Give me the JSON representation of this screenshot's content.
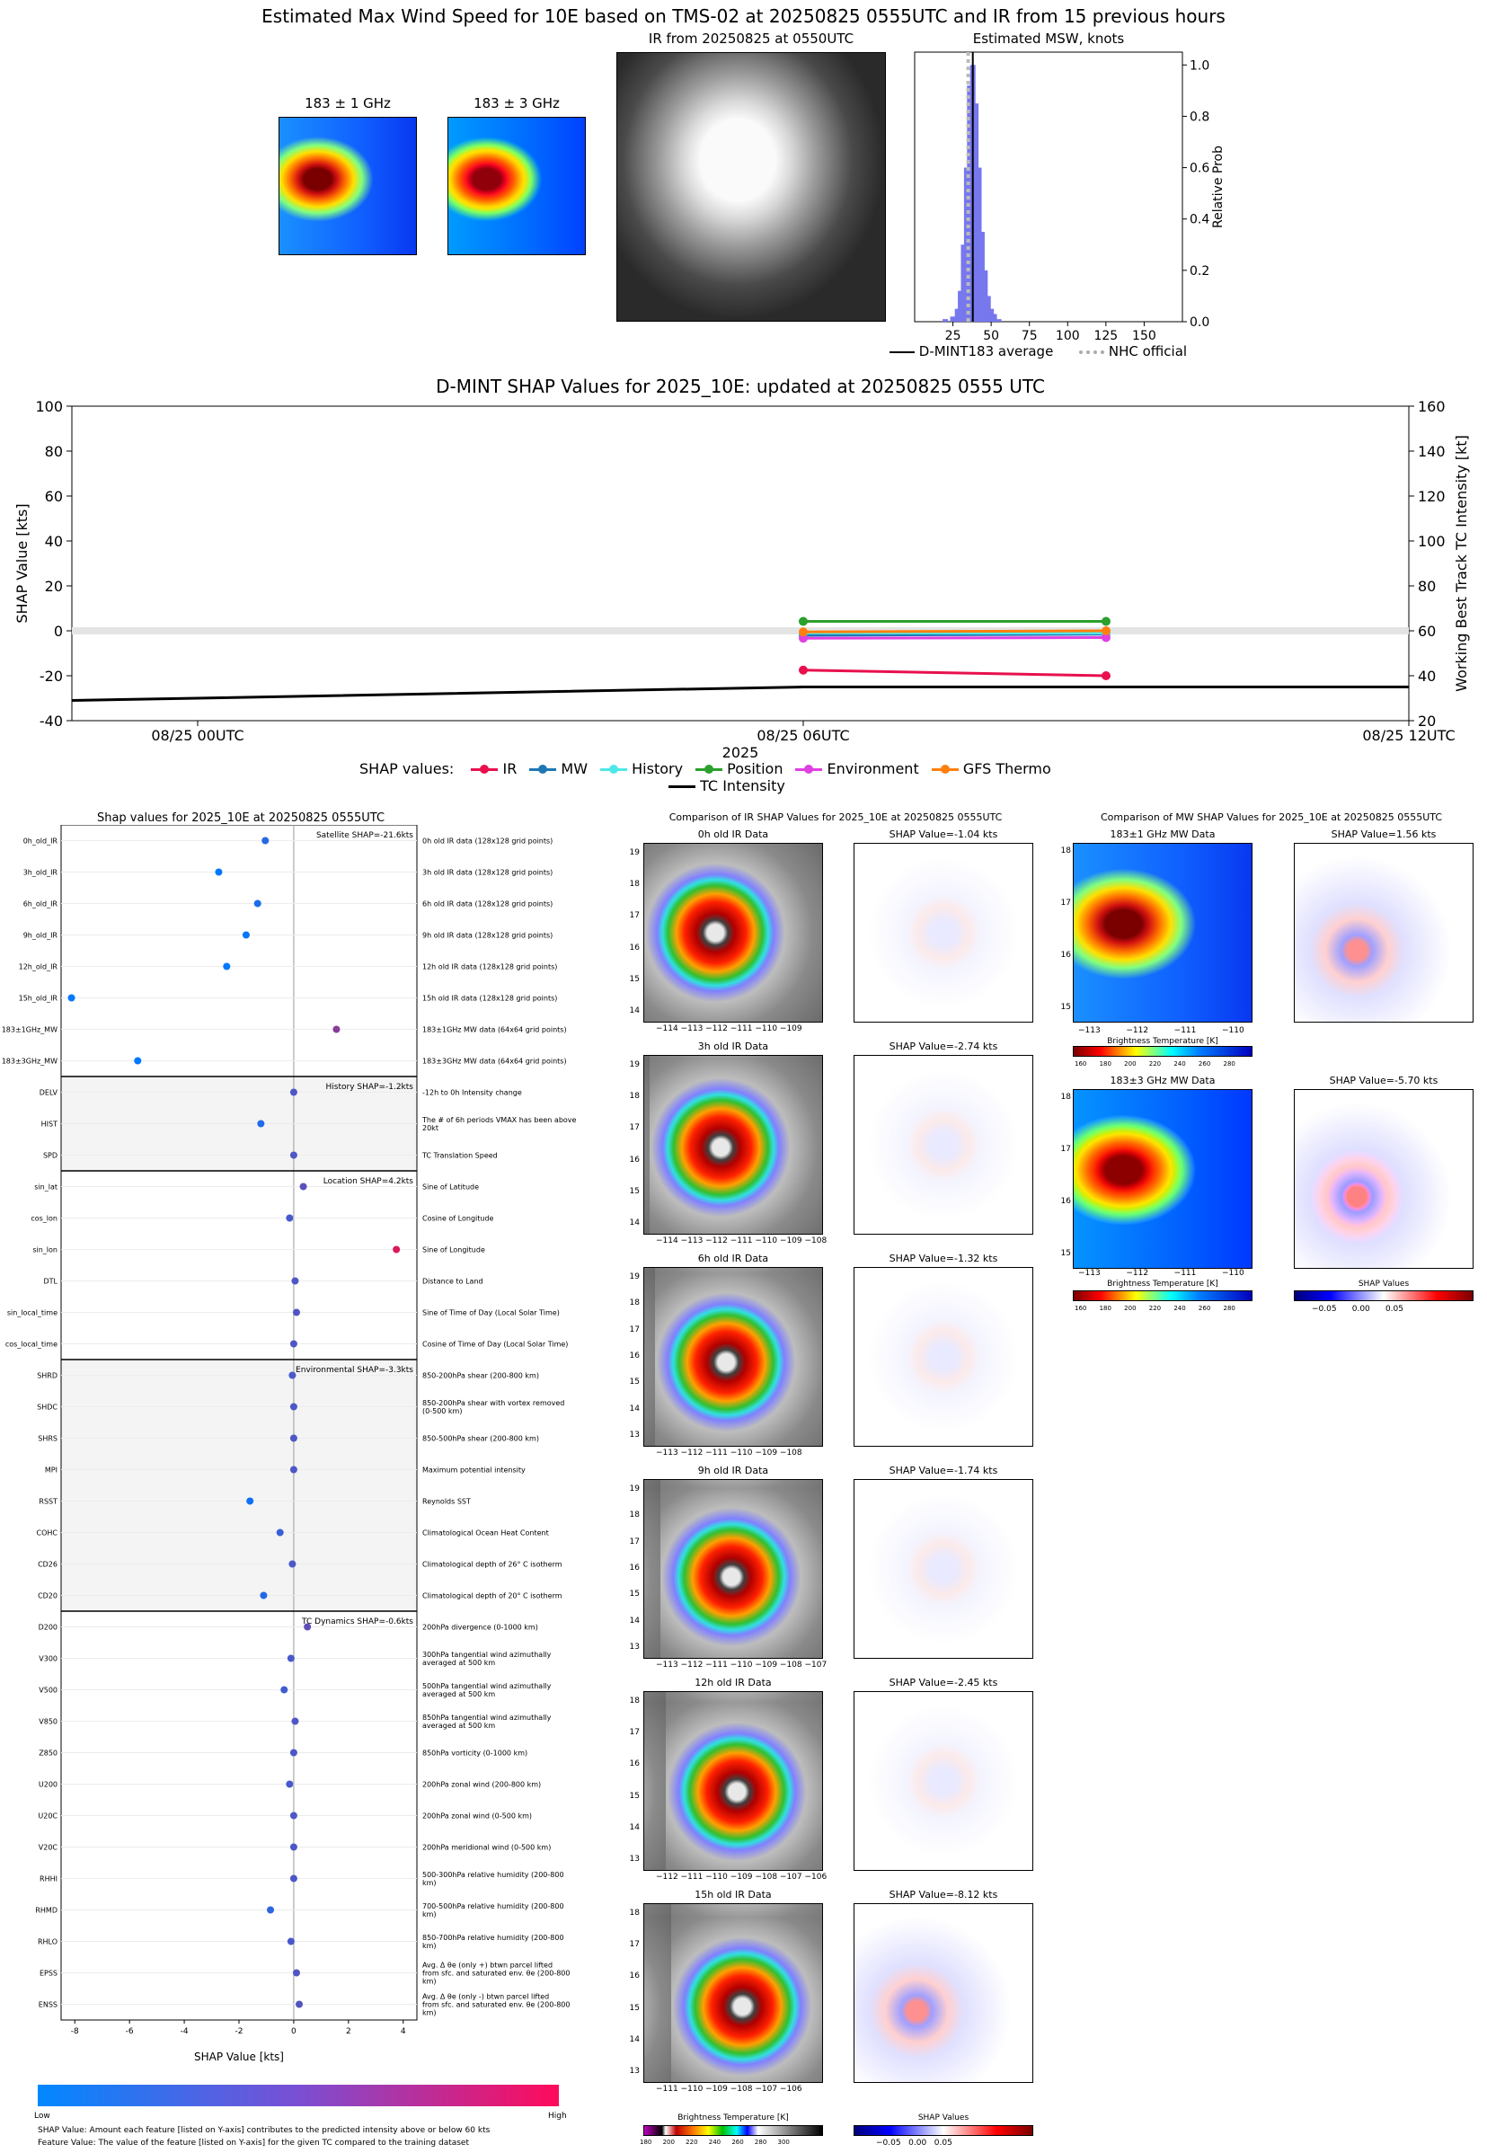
{
  "header": {
    "main_title": "Estimated Max Wind Speed for 10E based on TMS-02 at 20250825 0555UTC and IR from 15 previous hours",
    "mw1_title": "183 ± 1 GHz",
    "mw2_title": "183 ± 3 GHz",
    "ir_title": "IR from 20250825 at 0550UTC",
    "hist_title": "Estimated MSW, knots",
    "hist_ylabel": "Relative Prob",
    "hist_xticks": [
      "25",
      "50",
      "75",
      "100",
      "125",
      "150"
    ],
    "hist_yticks": [
      "0.0",
      "0.2",
      "0.4",
      "0.6",
      "0.8",
      "1.0"
    ],
    "legend_avg": "D-MINT183 average",
    "legend_nhc": "NHC official"
  },
  "shap_ts": {
    "title": "D-MINT SHAP Values for 2025_10E: updated at 20250825 0555 UTC",
    "ylabel_left": "SHAP Value [kts]",
    "ylabel_right": "Working Best Track TC Intensity [kt]",
    "xlabel": "2025",
    "left_ticks": [
      "100",
      "80",
      "60",
      "40",
      "20",
      "0",
      "-20",
      "-40"
    ],
    "right_ticks": [
      "160",
      "140",
      "120",
      "100",
      "80",
      "60",
      "40",
      "20"
    ],
    "x_ticks": [
      "08/25 00UTC",
      "08/25 06UTC",
      "08/25 12UTC"
    ],
    "legend_title": "SHAP values:",
    "legend": [
      "IR",
      "MW",
      "History",
      "Position",
      "Environment",
      "GFS Thermo",
      "TC Intensity"
    ]
  },
  "beeswarm": {
    "title": "Shap values for 2025_10E at 20250825 0555UTC",
    "xlabel": "SHAP Value [kts]",
    "xticks": [
      "-8",
      "-6",
      "-4",
      "-2",
      "0",
      "2",
      "4"
    ],
    "groups": [
      "Satellite SHAP=-21.6kts",
      "History SHAP=-1.2kts",
      "Location SHAP=4.2kts",
      "Environmental SHAP=-3.3kts",
      "TC Dynamics SHAP=-0.6kts"
    ],
    "features": [
      {
        "name": "0h_old_IR",
        "desc": "0h old IR data (128x128 grid points)",
        "value": -1.04
      },
      {
        "name": "3h_old_IR",
        "desc": "3h old IR data (128x128 grid points)",
        "value": -2.74
      },
      {
        "name": "6h_old_IR",
        "desc": "6h old IR data (128x128 grid points)",
        "value": -1.32
      },
      {
        "name": "9h_old_IR",
        "desc": "9h old IR data (128x128 grid points)",
        "value": -1.74
      },
      {
        "name": "12h_old_IR",
        "desc": "12h old IR data (128x128 grid points)",
        "value": -2.45
      },
      {
        "name": "15h_old_IR",
        "desc": "15h old IR data (128x128 grid points)",
        "value": -8.12
      },
      {
        "name": "183±1GHz_MW",
        "desc": "183±1GHz MW data (64x64 grid points)",
        "value": 1.56
      },
      {
        "name": "183±3GHz_MW",
        "desc": "183±3GHz MW data (64x64 grid points)",
        "value": -5.7
      },
      {
        "name": "DELV",
        "desc": "-12h to 0h Intensity change",
        "value": 0.0
      },
      {
        "name": "HIST",
        "desc": "The # of 6h periods VMAX has been above 20kt",
        "value": -1.2
      },
      {
        "name": "SPD",
        "desc": "TC Translation Speed",
        "value": 0.0
      },
      {
        "name": "sin_lat",
        "desc": "Sine of Latitude",
        "value": 0.35
      },
      {
        "name": "cos_lon",
        "desc": "Cosine of Longitude",
        "value": -0.15
      },
      {
        "name": "sin_lon",
        "desc": "Sine of Longitude",
        "value": 3.75
      },
      {
        "name": "DTL",
        "desc": "Distance to Land",
        "value": 0.05
      },
      {
        "name": "sin_local_time",
        "desc": "Sine of Time of Day (Local Solar Time)",
        "value": 0.1
      },
      {
        "name": "cos_local_time",
        "desc": "Cosine of Time of Day (Local Solar Time)",
        "value": 0.0
      },
      {
        "name": "SHRD",
        "desc": "850-200hPa shear (200-800 km)",
        "value": -0.05
      },
      {
        "name": "SHDC",
        "desc": "850-200hPa shear with vortex removed (0-500 km)",
        "value": 0.0
      },
      {
        "name": "SHRS",
        "desc": "850-500hPa shear (200-800 km)",
        "value": 0.0
      },
      {
        "name": "MPI",
        "desc": "Maximum potential intensity",
        "value": 0.0
      },
      {
        "name": "RSST",
        "desc": "Reynolds SST",
        "value": -1.6
      },
      {
        "name": "COHC",
        "desc": "Climatological Ocean Heat Content",
        "value": -0.5
      },
      {
        "name": "CD26",
        "desc": "Climatological depth of 26° C isotherm",
        "value": -0.05
      },
      {
        "name": "CD20",
        "desc": "Climatological depth of 20° C isotherm",
        "value": -1.1
      },
      {
        "name": "D200",
        "desc": "200hPa divergence (0-1000 km)",
        "value": 0.5
      },
      {
        "name": "V300",
        "desc": "300hPa tangential wind azimuthally averaged at 500 km",
        "value": -0.1
      },
      {
        "name": "V500",
        "desc": "500hPa tangential wind azimuthally averaged at 500 km",
        "value": -0.35
      },
      {
        "name": "V850",
        "desc": "850hPa tangential wind azimuthally averaged at 500 km",
        "value": 0.05
      },
      {
        "name": "Z850",
        "desc": "850hPa vorticity (0-1000 km)",
        "value": 0.0
      },
      {
        "name": "U200",
        "desc": "200hPa zonal wind (200-800 km)",
        "value": -0.15
      },
      {
        "name": "U20C",
        "desc": "200hPa zonal wind (0-500 km)",
        "value": 0.0
      },
      {
        "name": "V20C",
        "desc": "200hPa meridional wind (0-500 km)",
        "value": 0.0
      },
      {
        "name": "RHHI",
        "desc": "500-300hPa relative humidity (200-800 km)",
        "value": 0.0
      },
      {
        "name": "RHMD",
        "desc": "700-500hPa relative humidity (200-800 km)",
        "value": -0.85
      },
      {
        "name": "RHLO",
        "desc": "850-700hPa relative humidity (200-800 km)",
        "value": -0.1
      },
      {
        "name": "EPSS",
        "desc": "Avg. Δ θe (only +) btwn parcel lifted from sfc. and saturated env. θe (200-800 km)",
        "value": 0.1
      },
      {
        "name": "ENSS",
        "desc": "Avg. Δ θe (only -) btwn parcel lifted from sfc. and saturated env. θe (200-800 km)",
        "value": 0.2
      }
    ],
    "cbar_low": "Low",
    "cbar_high": "High",
    "note1": "SHAP Value: Amount each feature [listed on Y-axis] contributes to the predicted intensity above or below 60 kts",
    "note2": "Feature Value: The value of the feature [listed on Y-axis] for the given TC compared to the training dataset"
  },
  "ir_compare": {
    "title": "Comparison of IR SHAP Values for 2025_10E at 20250825 0555UTC",
    "panels": [
      {
        "label": "0h old IR Data",
        "shap": "SHAP Value=-1.04 kts",
        "yt": [
          "19",
          "18",
          "17",
          "16",
          "15",
          "14"
        ],
        "xt": "−114 −113 −112 −111 −110 −109"
      },
      {
        "label": "3h old IR Data",
        "shap": "SHAP Value=-2.74 kts",
        "yt": [
          "19",
          "18",
          "17",
          "16",
          "15",
          "14"
        ],
        "xt": "−114 −113 −112 −111 −110 −109 −108"
      },
      {
        "label": "6h old IR Data",
        "shap": "SHAP Value=-1.32 kts",
        "yt": [
          "19",
          "18",
          "17",
          "16",
          "15",
          "14",
          "13"
        ],
        "xt": "−113 −112 −111 −110 −109 −108"
      },
      {
        "label": "9h old IR Data",
        "shap": "SHAP Value=-1.74 kts",
        "yt": [
          "19",
          "18",
          "17",
          "16",
          "15",
          "14",
          "13"
        ],
        "xt": "−113 −112 −111 −110 −109 −108 −107"
      },
      {
        "label": "12h old IR Data",
        "shap": "SHAP Value=-2.45 kts",
        "yt": [
          "18",
          "17",
          "16",
          "15",
          "14",
          "13"
        ],
        "xt": "−112 −111 −110 −109 −108 −107 −106"
      },
      {
        "label": "15h old IR Data",
        "shap": "SHAP Value=-8.12 kts",
        "yt": [
          "18",
          "17",
          "16",
          "15",
          "14",
          "13"
        ],
        "xt": "−111 −110 −109 −108 −107 −106"
      }
    ],
    "cbar_label": "Brightness Temperature [K]",
    "cbar_ticks": "180 200 220 240 260 280 300",
    "shap_cbar_label": "SHAP Values",
    "shap_cbar_ticks": "−0.05   0.00   0.05"
  },
  "mw_compare": {
    "title": "Comparison of MW SHAP Values for 2025_10E at 20250825 0555UTC",
    "p1_label": "183±1 GHz MW Data",
    "p1_shap": "SHAP Value=1.56 kts",
    "p2_label": "183±3 GHz MW Data",
    "p2_shap": "SHAP Value=-5.70 kts",
    "yt": [
      "18",
      "17",
      "16",
      "15"
    ],
    "xt": "−113          −112          −111          −110",
    "cbar_label": "Brightness Temperature [K]",
    "cbar_ticks": "160 180 200 220 240 260 280",
    "shap_cbar_label": "SHAP Values",
    "shap_cbar_ticks": "−0.05      0.00      0.05"
  },
  "chart_data": [
    {
      "type": "bar",
      "title": "Estimated MSW, knots",
      "ylabel": "Relative Prob",
      "xlim": [
        0,
        175
      ],
      "ylim": [
        0,
        1.05
      ],
      "x": [
        20,
        25,
        28,
        30,
        32,
        34,
        36,
        38,
        40,
        42,
        44,
        46,
        48,
        50,
        52,
        55
      ],
      "values": [
        0.01,
        0.02,
        0.05,
        0.12,
        0.3,
        0.6,
        0.92,
        1.0,
        0.85,
        0.6,
        0.35,
        0.2,
        0.1,
        0.05,
        0.03,
        0.01
      ],
      "avg": 38,
      "nhc": 35
    },
    {
      "type": "line",
      "title": "D-MINT SHAP Values for 2025_10E: updated at 20250825 0555 UTC",
      "x": [
        "08/25 06UTC",
        "08/25 09UTC"
      ],
      "ylim": [
        -40,
        100
      ],
      "series": [
        {
          "name": "IR",
          "color": "#e8104e",
          "values": [
            -17.5,
            -20
          ]
        },
        {
          "name": "MW",
          "color": "#1f77b4",
          "values": [
            -2,
            -1.5
          ]
        },
        {
          "name": "History",
          "color": "#4ee8e8",
          "values": [
            -1,
            -1
          ]
        },
        {
          "name": "Position",
          "color": "#2ca02c",
          "values": [
            4.2,
            4.2
          ]
        },
        {
          "name": "Environment",
          "color": "#e040e0",
          "values": [
            -3.3,
            -3
          ]
        },
        {
          "name": "GFS Thermo",
          "color": "#ff7f0e",
          "values": [
            -0.5,
            0
          ]
        }
      ],
      "tc_intensity": {
        "right_ylim": [
          20,
          160
        ],
        "x": [
          "08/25 00UTC",
          "08/25 06UTC",
          "08/25 12UTC"
        ],
        "values": [
          30,
          35,
          35
        ]
      }
    }
  ]
}
